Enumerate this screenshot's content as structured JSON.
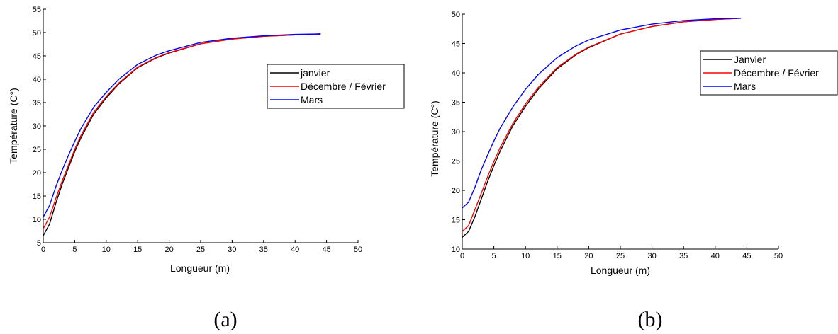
{
  "chart_data": [
    {
      "type": "line",
      "caption": "(a)",
      "xlabel": "Longueur (m)",
      "ylabel": "Température (C°)",
      "xlim": [
        0,
        50
      ],
      "ylim": [
        5,
        55
      ],
      "xticks": [
        "0",
        "5",
        "10",
        "15",
        "20",
        "25",
        "30",
        "35",
        "40",
        "45",
        "50"
      ],
      "yticks": [
        "5",
        "10",
        "15",
        "20",
        "25",
        "30",
        "35",
        "40",
        "45",
        "50",
        "55"
      ],
      "grid": false,
      "legend_position": "right",
      "series": [
        {
          "name": "janvier",
          "color": "#000000",
          "x": [
            0,
            1,
            2,
            3,
            4,
            5,
            6,
            8,
            10,
            12,
            15,
            18,
            20,
            25,
            30,
            35,
            40,
            44
          ],
          "y": [
            6.5,
            9,
            13.5,
            17.5,
            21,
            24.5,
            27.5,
            32.5,
            36,
            39,
            42.5,
            44.6,
            45.6,
            47.6,
            48.6,
            49.2,
            49.5,
            49.7
          ]
        },
        {
          "name": "Décembre / Février",
          "color": "#ff0000",
          "x": [
            0,
            1,
            2,
            3,
            4,
            5,
            6,
            8,
            10,
            12,
            15,
            18,
            20,
            25,
            30,
            35,
            40,
            44
          ],
          "y": [
            8,
            10.5,
            14.5,
            18.2,
            21.6,
            25,
            28,
            32.9,
            36.3,
            39.2,
            42.6,
            44.7,
            45.7,
            47.6,
            48.6,
            49.2,
            49.5,
            49.7
          ]
        },
        {
          "name": "Mars",
          "color": "#0000ff",
          "x": [
            0,
            1,
            2,
            3,
            4,
            5,
            6,
            8,
            10,
            12,
            15,
            18,
            20,
            25,
            30,
            35,
            40,
            44
          ],
          "y": [
            10.5,
            13,
            17,
            20.5,
            23.7,
            26.7,
            29.5,
            34,
            37.2,
            40,
            43.2,
            45.2,
            46.1,
            47.9,
            48.8,
            49.3,
            49.6,
            49.7
          ]
        }
      ]
    },
    {
      "type": "line",
      "caption": "(b)",
      "xlabel": "Longueur (m)",
      "ylabel": "Température (C°)",
      "xlim": [
        0,
        50
      ],
      "ylim": [
        10,
        50
      ],
      "xticks": [
        "0",
        "5",
        "10",
        "15",
        "20",
        "25",
        "30",
        "35",
        "40",
        "45",
        "50"
      ],
      "yticks": [
        "10",
        "15",
        "20",
        "25",
        "30",
        "35",
        "40",
        "45",
        "50"
      ],
      "grid": false,
      "legend_position": "top-right",
      "series": [
        {
          "name": "Janvier",
          "color": "#000000",
          "x": [
            0,
            1,
            2,
            3,
            4,
            5,
            6,
            8,
            10,
            12,
            15,
            18,
            20,
            25,
            30,
            35,
            40,
            44
          ],
          "y": [
            12,
            13,
            15.5,
            18.5,
            21.5,
            24.2,
            26.7,
            31,
            34.3,
            37.2,
            40.7,
            43.1,
            44.3,
            46.6,
            47.9,
            48.7,
            49.1,
            49.3
          ]
        },
        {
          "name": "Décembre / Février",
          "color": "#ff0000",
          "x": [
            0,
            1,
            2,
            3,
            4,
            5,
            6,
            8,
            10,
            12,
            15,
            18,
            20,
            25,
            30,
            35,
            40,
            44
          ],
          "y": [
            13,
            14,
            16.7,
            19.5,
            22.3,
            24.9,
            27.3,
            31.4,
            34.7,
            37.5,
            40.9,
            43.2,
            44.4,
            46.6,
            47.9,
            48.7,
            49.1,
            49.3
          ]
        },
        {
          "name": "Mars",
          "color": "#0000ff",
          "x": [
            0,
            1,
            2,
            3,
            4,
            5,
            6,
            8,
            10,
            12,
            15,
            18,
            20,
            25,
            30,
            35,
            40,
            44
          ],
          "y": [
            17,
            18,
            20.5,
            23.5,
            26,
            28.4,
            30.6,
            34.2,
            37.2,
            39.7,
            42.6,
            44.6,
            45.6,
            47.3,
            48.3,
            48.9,
            49.2,
            49.3
          ]
        }
      ]
    }
  ]
}
